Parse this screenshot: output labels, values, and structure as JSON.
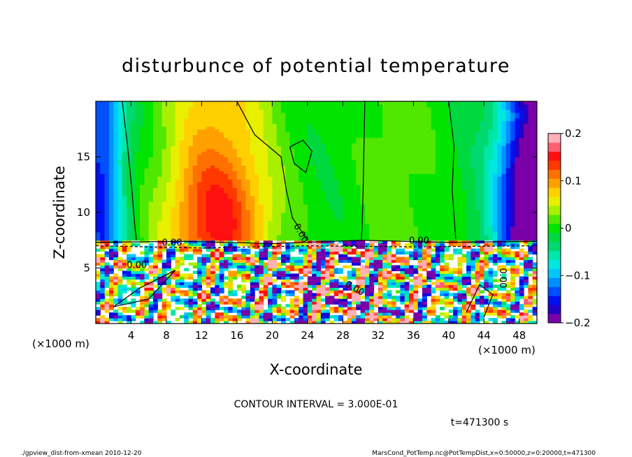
{
  "chart_data": {
    "type": "heatmap",
    "title": "disturbunce of potential temperature",
    "xlabel": "X-coordinate",
    "ylabel": "Z-coordinate",
    "x_unit_left": "(×1000 m)",
    "x_unit_right": "(×1000 m)",
    "xlim": [
      0,
      50
    ],
    "ylim": [
      0,
      20
    ],
    "x_ticks": [
      "4",
      "8",
      "12",
      "16",
      "20",
      "24",
      "28",
      "32",
      "36",
      "40",
      "44",
      "48"
    ],
    "x_tick_values": [
      4,
      8,
      12,
      16,
      20,
      24,
      28,
      32,
      36,
      40,
      44,
      48
    ],
    "y_ticks": [
      "5",
      "10",
      "15"
    ],
    "y_tick_values": [
      5,
      10,
      15
    ],
    "colorbar": {
      "ticks": [
        "0.2",
        "0.1",
        "0",
        "−0.1",
        "−0.2"
      ],
      "tick_values": [
        0.2,
        0.1,
        0,
        -0.1,
        -0.2
      ],
      "range": [
        -0.2,
        0.2
      ],
      "levels": [
        -0.2,
        -0.18,
        -0.16,
        -0.14,
        -0.12,
        -0.1,
        -0.08,
        -0.06,
        -0.04,
        -0.02,
        0,
        0.02,
        0.04,
        0.06,
        0.08,
        0.1,
        0.12,
        0.14,
        0.16,
        0.18,
        0.2
      ],
      "colors": [
        "#7a00a8",
        "#2200c8",
        "#0010f0",
        "#0050ff",
        "#0090ff",
        "#00c8ff",
        "#00e8e0",
        "#00e8a8",
        "#00d870",
        "#00d840",
        "#00e400",
        "#50e800",
        "#a8f000",
        "#e8f000",
        "#ffd000",
        "#ffa000",
        "#ff7000",
        "#ff3800",
        "#ff1010",
        "#ff6070",
        "#ffb0b8"
      ]
    },
    "contour_labels": [
      "0.00",
      "0.00",
      "0.00",
      "0.00",
      "0.00",
      "0.00"
    ],
    "contour_interval_text": "CONTOUR INTERVAL = 3.000E-01",
    "time_text": "t=471300 s"
  },
  "footer": {
    "left": "./gpview_dist-from-xmean   2010-12-20",
    "right": "MarsCond_PotTemp.nc@PotTempDist,x=0:50000,z=0:20000,t=471300"
  }
}
